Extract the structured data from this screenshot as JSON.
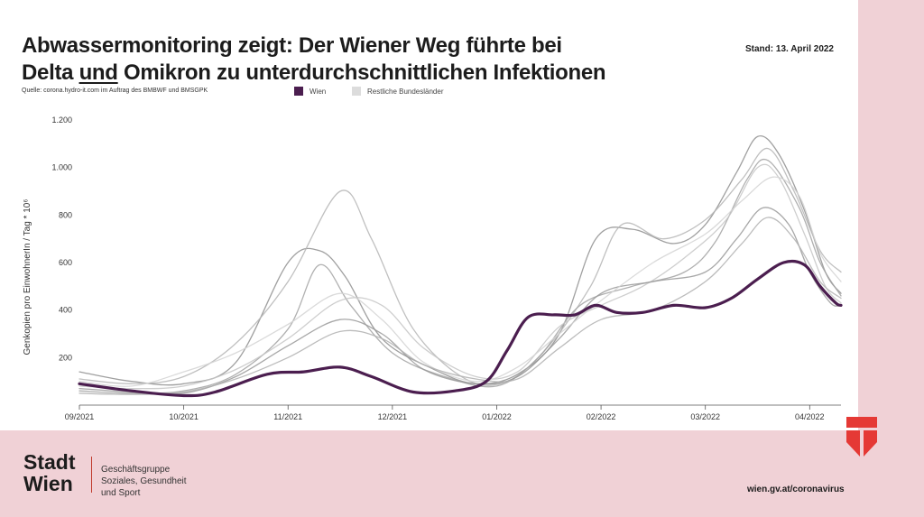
{
  "title": {
    "line1": "Abwassermonitoring zeigt: Der Wiener Weg führte bei",
    "line2_a": "Delta ",
    "line2_u": "und",
    "line2_b": " Omikron zu unterdurchschnittlichen Infektionen"
  },
  "stand": "Stand: 13. April 2022",
  "source": "Quelle: corona.hydro-it.com im Auftrag des BMBWF und BMSGPK",
  "legend": {
    "wien": "Wien",
    "rest": "Restliche Bundesländer",
    "wien_color": "#4b1e4f",
    "rest_color": "#dcdcdc"
  },
  "footer": {
    "logo_line1": "Stadt",
    "logo_line2": "Wien",
    "dept_line1": "Geschäftsgruppe",
    "dept_line2": "Soziales, Gesundheit",
    "dept_line3": "und Sport",
    "url": "wien.gv.at/coronavirus"
  },
  "chart_data": {
    "type": "line",
    "ylabel": "Genkopien pro EinwohnerIn / Tag * 10⁶",
    "ylim": [
      0,
      1200
    ],
    "yticks": [
      200,
      400,
      600,
      800,
      1000,
      1200
    ],
    "ytick_labels": [
      "200",
      "400",
      "600",
      "800",
      "1.000",
      "1.200"
    ],
    "xticks": [
      "09/2021",
      "10/2021",
      "11/2021",
      "12/2021",
      "01/2022",
      "02/2022",
      "03/2022",
      "04/2022"
    ],
    "xlim_months": [
      0,
      7.3
    ],
    "grid": false,
    "legend_position": "top",
    "series": [
      {
        "name": "Wien",
        "color": "#4b1e4f",
        "points": [
          [
            0,
            90
          ],
          [
            0.5,
            60
          ],
          [
            1,
            40
          ],
          [
            1.3,
            55
          ],
          [
            1.8,
            130
          ],
          [
            2.15,
            140
          ],
          [
            2.5,
            160
          ],
          [
            2.8,
            120
          ],
          [
            3.2,
            55
          ],
          [
            3.6,
            60
          ],
          [
            3.9,
            100
          ],
          [
            4.1,
            230
          ],
          [
            4.3,
            370
          ],
          [
            4.55,
            380
          ],
          [
            4.75,
            380
          ],
          [
            4.95,
            420
          ],
          [
            5.15,
            390
          ],
          [
            5.4,
            390
          ],
          [
            5.7,
            420
          ],
          [
            6.0,
            410
          ],
          [
            6.25,
            450
          ],
          [
            6.5,
            530
          ],
          [
            6.75,
            600
          ],
          [
            6.95,
            590
          ],
          [
            7.1,
            500
          ],
          [
            7.25,
            430
          ],
          [
            7.3,
            420
          ]
        ]
      },
      {
        "name": "",
        "color": "#8f8f8f",
        "points": [
          [
            0,
            140
          ],
          [
            0.5,
            100
          ],
          [
            1,
            90
          ],
          [
            1.5,
            180
          ],
          [
            2.0,
            600
          ],
          [
            2.3,
            650
          ],
          [
            2.55,
            540
          ],
          [
            2.9,
            280
          ],
          [
            3.4,
            150
          ],
          [
            3.8,
            90
          ],
          [
            4.2,
            130
          ],
          [
            4.6,
            300
          ],
          [
            4.95,
            700
          ],
          [
            5.3,
            740
          ],
          [
            5.7,
            680
          ],
          [
            6.0,
            760
          ],
          [
            6.3,
            980
          ],
          [
            6.5,
            1130
          ],
          [
            6.7,
            1060
          ],
          [
            6.95,
            820
          ],
          [
            7.15,
            560
          ],
          [
            7.3,
            470
          ]
        ]
      },
      {
        "name": "",
        "color": "#b5b5b5",
        "points": [
          [
            0,
            110
          ],
          [
            0.5,
            90
          ],
          [
            1,
            120
          ],
          [
            1.5,
            260
          ],
          [
            2.0,
            520
          ],
          [
            2.5,
            900
          ],
          [
            2.8,
            700
          ],
          [
            3.2,
            320
          ],
          [
            3.7,
            110
          ],
          [
            4.1,
            100
          ],
          [
            4.5,
            250
          ],
          [
            4.9,
            500
          ],
          [
            5.2,
            760
          ],
          [
            5.6,
            700
          ],
          [
            6.0,
            780
          ],
          [
            6.35,
            950
          ],
          [
            6.6,
            1080
          ],
          [
            6.85,
            900
          ],
          [
            7.1,
            650
          ],
          [
            7.3,
            560
          ]
        ]
      },
      {
        "name": "",
        "color": "#a2a2a2",
        "points": [
          [
            0,
            60
          ],
          [
            0.5,
            50
          ],
          [
            1,
            60
          ],
          [
            1.5,
            130
          ],
          [
            2.0,
            320
          ],
          [
            2.3,
            590
          ],
          [
            2.6,
            420
          ],
          [
            3.0,
            220
          ],
          [
            3.5,
            120
          ],
          [
            4.0,
            80
          ],
          [
            4.4,
            200
          ],
          [
            4.8,
            420
          ],
          [
            5.3,
            500
          ],
          [
            5.8,
            560
          ],
          [
            6.1,
            690
          ],
          [
            6.4,
            950
          ],
          [
            6.6,
            1030
          ],
          [
            6.9,
            830
          ],
          [
            7.1,
            600
          ],
          [
            7.3,
            460
          ]
        ]
      },
      {
        "name": "",
        "color": "#c6c6c6",
        "points": [
          [
            0,
            80
          ],
          [
            0.5,
            70
          ],
          [
            1,
            80
          ],
          [
            1.5,
            150
          ],
          [
            2.0,
            280
          ],
          [
            2.5,
            440
          ],
          [
            2.9,
            420
          ],
          [
            3.3,
            240
          ],
          [
            3.8,
            120
          ],
          [
            4.2,
            140
          ],
          [
            4.6,
            330
          ],
          [
            5.0,
            420
          ],
          [
            5.4,
            500
          ],
          [
            5.8,
            620
          ],
          [
            6.2,
            780
          ],
          [
            6.5,
            1000
          ],
          [
            6.7,
            960
          ],
          [
            6.95,
            720
          ],
          [
            7.15,
            500
          ],
          [
            7.3,
            430
          ]
        ]
      },
      {
        "name": "",
        "color": "#999999",
        "points": [
          [
            0,
            70
          ],
          [
            0.5,
            55
          ],
          [
            1,
            50
          ],
          [
            1.5,
            120
          ],
          [
            2.0,
            250
          ],
          [
            2.5,
            360
          ],
          [
            2.9,
            300
          ],
          [
            3.3,
            150
          ],
          [
            3.8,
            90
          ],
          [
            4.2,
            120
          ],
          [
            4.6,
            280
          ],
          [
            5.0,
            470
          ],
          [
            5.5,
            520
          ],
          [
            6.0,
            560
          ],
          [
            6.3,
            700
          ],
          [
            6.55,
            830
          ],
          [
            6.8,
            760
          ],
          [
            7.0,
            560
          ],
          [
            7.2,
            430
          ],
          [
            7.3,
            420
          ]
        ]
      },
      {
        "name": "",
        "color": "#d4d4d4",
        "points": [
          [
            0,
            100
          ],
          [
            0.5,
            80
          ],
          [
            1,
            140
          ],
          [
            1.5,
            220
          ],
          [
            2.0,
            340
          ],
          [
            2.5,
            470
          ],
          [
            2.9,
            360
          ],
          [
            3.3,
            180
          ],
          [
            3.8,
            100
          ],
          [
            4.2,
            160
          ],
          [
            4.6,
            300
          ],
          [
            5.0,
            440
          ],
          [
            5.5,
            600
          ],
          [
            6.0,
            720
          ],
          [
            6.35,
            860
          ],
          [
            6.65,
            960
          ],
          [
            6.9,
            880
          ],
          [
            7.1,
            640
          ],
          [
            7.3,
            520
          ]
        ]
      },
      {
        "name": "",
        "color": "#b0b0b0",
        "points": [
          [
            0,
            50
          ],
          [
            0.5,
            45
          ],
          [
            1,
            55
          ],
          [
            1.5,
            110
          ],
          [
            2.0,
            200
          ],
          [
            2.5,
            310
          ],
          [
            2.9,
            280
          ],
          [
            3.3,
            170
          ],
          [
            3.8,
            110
          ],
          [
            4.2,
            110
          ],
          [
            4.6,
            240
          ],
          [
            5.0,
            360
          ],
          [
            5.5,
            400
          ],
          [
            6.0,
            520
          ],
          [
            6.35,
            680
          ],
          [
            6.6,
            790
          ],
          [
            6.85,
            700
          ],
          [
            7.1,
            520
          ],
          [
            7.3,
            450
          ]
        ]
      }
    ]
  }
}
